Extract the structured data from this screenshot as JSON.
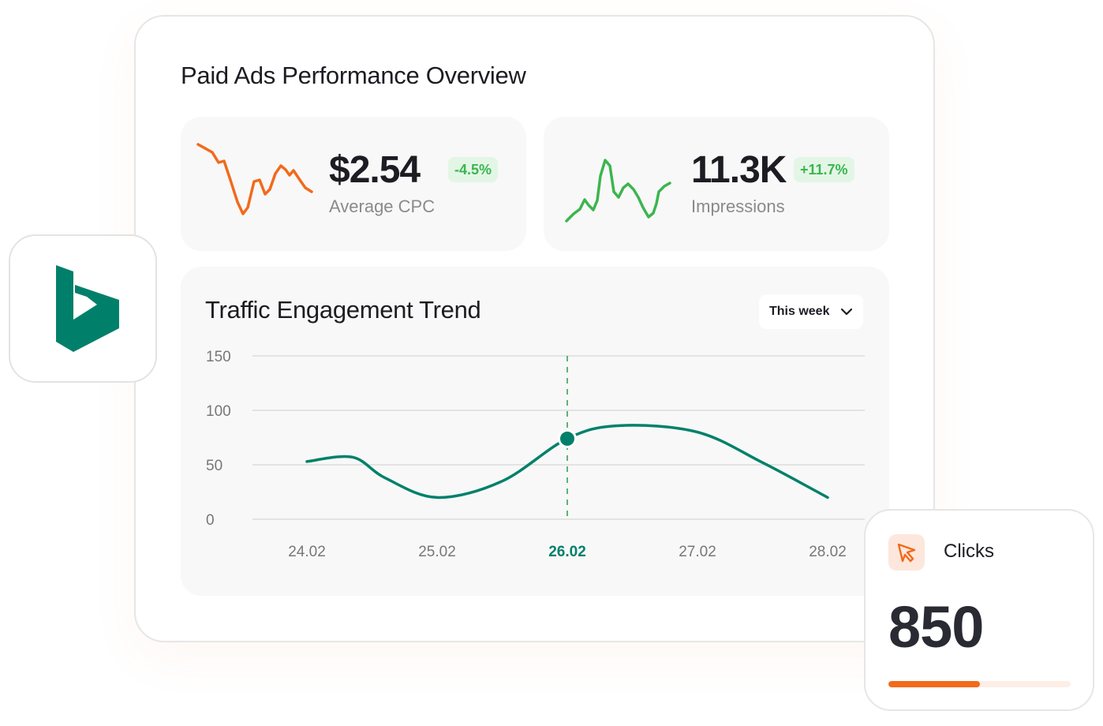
{
  "header": {
    "title": "Paid Ads Performance Overview"
  },
  "stats": [
    {
      "value": "$2.54",
      "change": "-4.5%",
      "label": "Average CPC",
      "line_color": "#f26a1b"
    },
    {
      "value": "11.3K",
      "change": "+11.7%",
      "label": "Impressions",
      "line_color": "#3cb54f"
    }
  ],
  "chart_card": {
    "title": "Traffic Engagement Trend",
    "period_selector": "This week"
  },
  "chart_data": {
    "type": "line",
    "title": "Traffic Engagement Trend",
    "categories": [
      "24.02",
      "25.02",
      "26.02",
      "27.02",
      "28.02"
    ],
    "x": [
      0.0,
      0.35,
      0.6,
      1.0,
      1.5,
      2.0,
      2.4,
      3.0,
      3.5,
      4.0
    ],
    "values": [
      53,
      57,
      38,
      20,
      35,
      74,
      86,
      80,
      52,
      20
    ],
    "yticks": [
      0,
      50,
      100,
      150
    ],
    "ylim": [
      0,
      150
    ],
    "highlighted_category": "26.02",
    "highlight_color": "#00806a",
    "grid": true,
    "line_color": "#00806a"
  },
  "clicks": {
    "label": "Clicks",
    "value": "850",
    "progress": 0.5,
    "accent": "#f26a1b"
  },
  "logo": {
    "icon": "bing-logo-icon",
    "color": "#00806a"
  }
}
